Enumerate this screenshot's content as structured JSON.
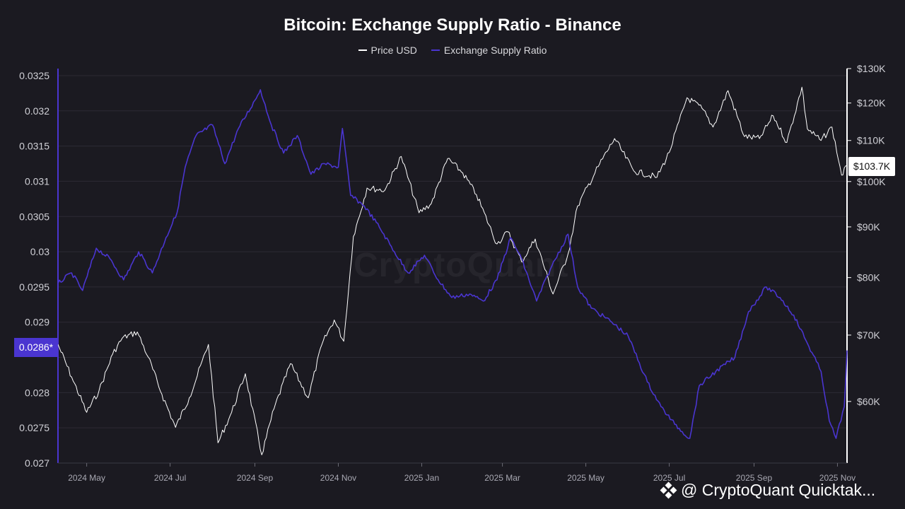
{
  "chart_data": {
    "type": "line",
    "title": "Bitcoin: Exchange Supply Ratio - Binance",
    "legend_position": "top-center",
    "grid": true,
    "x_axis": {
      "range": [
        "2024-04-10",
        "2025-11-08"
      ],
      "tick_labels": [
        "2024 May",
        "2024 Jul",
        "2024 Sep",
        "2024 Nov",
        "2025 Jan",
        "2025 Mar",
        "2025 May",
        "2025 Jul",
        "2025 Sep",
        "2025 Nov"
      ],
      "tick_dates": [
        "2024-05-01",
        "2024-07-01",
        "2024-09-01",
        "2024-11-01",
        "2025-01-01",
        "2025-03-01",
        "2025-05-01",
        "2025-07-01",
        "2025-09-01",
        "2025-11-01"
      ]
    },
    "y_axis_left": {
      "range": [
        0.027,
        0.0326
      ],
      "tick_values": [
        0.027,
        0.0275,
        0.028,
        0.0285,
        0.029,
        0.0295,
        0.03,
        0.0305,
        0.031,
        0.0315,
        0.032,
        0.0325
      ],
      "tick_labels": [
        "0.027",
        "0.0275",
        "0.028",
        "",
        "0.029",
        "0.0295",
        "0.03",
        "0.0305",
        "0.031",
        "0.0315",
        "0.032",
        "0.0325"
      ]
    },
    "y_axis_right": {
      "scale": "log",
      "range": [
        52000,
        130000
      ],
      "tick_values": [
        60000,
        70000,
        80000,
        90000,
        100000,
        110000,
        120000,
        130000
      ],
      "tick_labels": [
        "$60K",
        "$70K",
        "$80K",
        "$90K",
        "$100K",
        "$110K",
        "$120K",
        "$130K"
      ]
    },
    "series": [
      {
        "name": "Price USD",
        "axis": "right",
        "color": "#ffffff",
        "points": [
          [
            "2024-04-10",
            68500
          ],
          [
            "2024-04-20",
            63500
          ],
          [
            "2024-05-01",
            58500
          ],
          [
            "2024-05-10",
            61500
          ],
          [
            "2024-05-20",
            67000
          ],
          [
            "2024-05-27",
            69500
          ],
          [
            "2024-06-07",
            70500
          ],
          [
            "2024-06-15",
            66500
          ],
          [
            "2024-06-25",
            61000
          ],
          [
            "2024-07-05",
            56500
          ],
          [
            "2024-07-15",
            60500
          ],
          [
            "2024-07-29",
            68500
          ],
          [
            "2024-08-05",
            54500
          ],
          [
            "2024-08-15",
            58500
          ],
          [
            "2024-08-25",
            64000
          ],
          [
            "2024-09-06",
            53000
          ],
          [
            "2024-09-15",
            59000
          ],
          [
            "2024-09-27",
            65500
          ],
          [
            "2024-10-10",
            60500
          ],
          [
            "2024-10-20",
            68500
          ],
          [
            "2024-10-29",
            72500
          ],
          [
            "2024-11-05",
            69000
          ],
          [
            "2024-11-12",
            88000
          ],
          [
            "2024-11-22",
            98500
          ],
          [
            "2024-12-05",
            98000
          ],
          [
            "2024-12-17",
            106000
          ],
          [
            "2024-12-30",
            93000
          ],
          [
            "2025-01-08",
            95000
          ],
          [
            "2025-01-20",
            105500
          ],
          [
            "2025-01-31",
            102000
          ],
          [
            "2025-02-10",
            97000
          ],
          [
            "2025-02-25",
            86500
          ],
          [
            "2025-03-05",
            89000
          ],
          [
            "2025-03-15",
            83000
          ],
          [
            "2025-03-25",
            87500
          ],
          [
            "2025-04-07",
            77000
          ],
          [
            "2025-04-18",
            84500
          ],
          [
            "2025-04-25",
            94500
          ],
          [
            "2025-05-10",
            103500
          ],
          [
            "2025-05-22",
            110500
          ],
          [
            "2025-06-05",
            102500
          ],
          [
            "2025-06-22",
            101000
          ],
          [
            "2025-07-01",
            107000
          ],
          [
            "2025-07-14",
            121500
          ],
          [
            "2025-07-25",
            118500
          ],
          [
            "2025-08-02",
            113500
          ],
          [
            "2025-08-13",
            123500
          ],
          [
            "2025-08-25",
            111000
          ],
          [
            "2025-09-05",
            110500
          ],
          [
            "2025-09-15",
            116500
          ],
          [
            "2025-09-25",
            109500
          ],
          [
            "2025-10-06",
            124500
          ],
          [
            "2025-10-10",
            113000
          ],
          [
            "2025-10-20",
            110000
          ],
          [
            "2025-10-28",
            113500
          ],
          [
            "2025-11-04",
            101500
          ],
          [
            "2025-11-08",
            103700
          ]
        ]
      },
      {
        "name": "Exchange Supply Ratio",
        "axis": "left",
        "color": "#4a35d0",
        "points": [
          [
            "2024-04-10",
            0.02955
          ],
          [
            "2024-04-20",
            0.0297
          ],
          [
            "2024-04-28",
            0.02945
          ],
          [
            "2024-05-08",
            0.03005
          ],
          [
            "2024-05-18",
            0.0299
          ],
          [
            "2024-05-28",
            0.0296
          ],
          [
            "2024-06-08",
            0.03
          ],
          [
            "2024-06-18",
            0.0297
          ],
          [
            "2024-06-28",
            0.0302
          ],
          [
            "2024-07-06",
            0.03055
          ],
          [
            "2024-07-12",
            0.0312
          ],
          [
            "2024-07-20",
            0.03165
          ],
          [
            "2024-08-01",
            0.0318
          ],
          [
            "2024-08-10",
            0.03125
          ],
          [
            "2024-08-20",
            0.03175
          ],
          [
            "2024-09-01",
            0.03215
          ],
          [
            "2024-09-05",
            0.0323
          ],
          [
            "2024-09-13",
            0.0318
          ],
          [
            "2024-09-22",
            0.0314
          ],
          [
            "2024-10-02",
            0.03165
          ],
          [
            "2024-10-12",
            0.0311
          ],
          [
            "2024-10-22",
            0.03125
          ],
          [
            "2024-11-01",
            0.0312
          ],
          [
            "2024-11-04",
            0.03175
          ],
          [
            "2024-11-10",
            0.0308
          ],
          [
            "2024-11-20",
            0.03065
          ],
          [
            "2024-12-01",
            0.03035
          ],
          [
            "2024-12-12",
            0.03
          ],
          [
            "2024-12-22",
            0.0297
          ],
          [
            "2025-01-03",
            0.02995
          ],
          [
            "2025-01-13",
            0.0296
          ],
          [
            "2025-01-23",
            0.02935
          ],
          [
            "2025-02-05",
            0.0294
          ],
          [
            "2025-02-15",
            0.0293
          ],
          [
            "2025-02-25",
            0.0296
          ],
          [
            "2025-03-07",
            0.0302
          ],
          [
            "2025-03-15",
            0.0299
          ],
          [
            "2025-03-26",
            0.0293
          ],
          [
            "2025-04-05",
            0.02975
          ],
          [
            "2025-04-18",
            0.03025
          ],
          [
            "2025-04-25",
            0.0295
          ],
          [
            "2025-05-05",
            0.0292
          ],
          [
            "2025-05-20",
            0.029
          ],
          [
            "2025-06-01",
            0.0288
          ],
          [
            "2025-06-15",
            0.02815
          ],
          [
            "2025-06-25",
            0.0278
          ],
          [
            "2025-07-05",
            0.02755
          ],
          [
            "2025-07-16",
            0.02735
          ],
          [
            "2025-07-23",
            0.0281
          ],
          [
            "2025-08-04",
            0.0283
          ],
          [
            "2025-08-18",
            0.0285
          ],
          [
            "2025-08-28",
            0.02915
          ],
          [
            "2025-09-10",
            0.0295
          ],
          [
            "2025-09-20",
            0.02935
          ],
          [
            "2025-09-30",
            0.0291
          ],
          [
            "2025-10-10",
            0.0287
          ],
          [
            "2025-10-20",
            0.0283
          ],
          [
            "2025-10-26",
            0.0276
          ],
          [
            "2025-10-31",
            0.02735
          ],
          [
            "2025-11-06",
            0.0278
          ],
          [
            "2025-11-08",
            0.0286
          ]
        ]
      }
    ],
    "current_ratio_label": "0.0286*",
    "current_price_label": "$103.7K"
  },
  "watermark": "CryptoQuant",
  "source_tag": "@ CryptoQuant Quicktak..."
}
